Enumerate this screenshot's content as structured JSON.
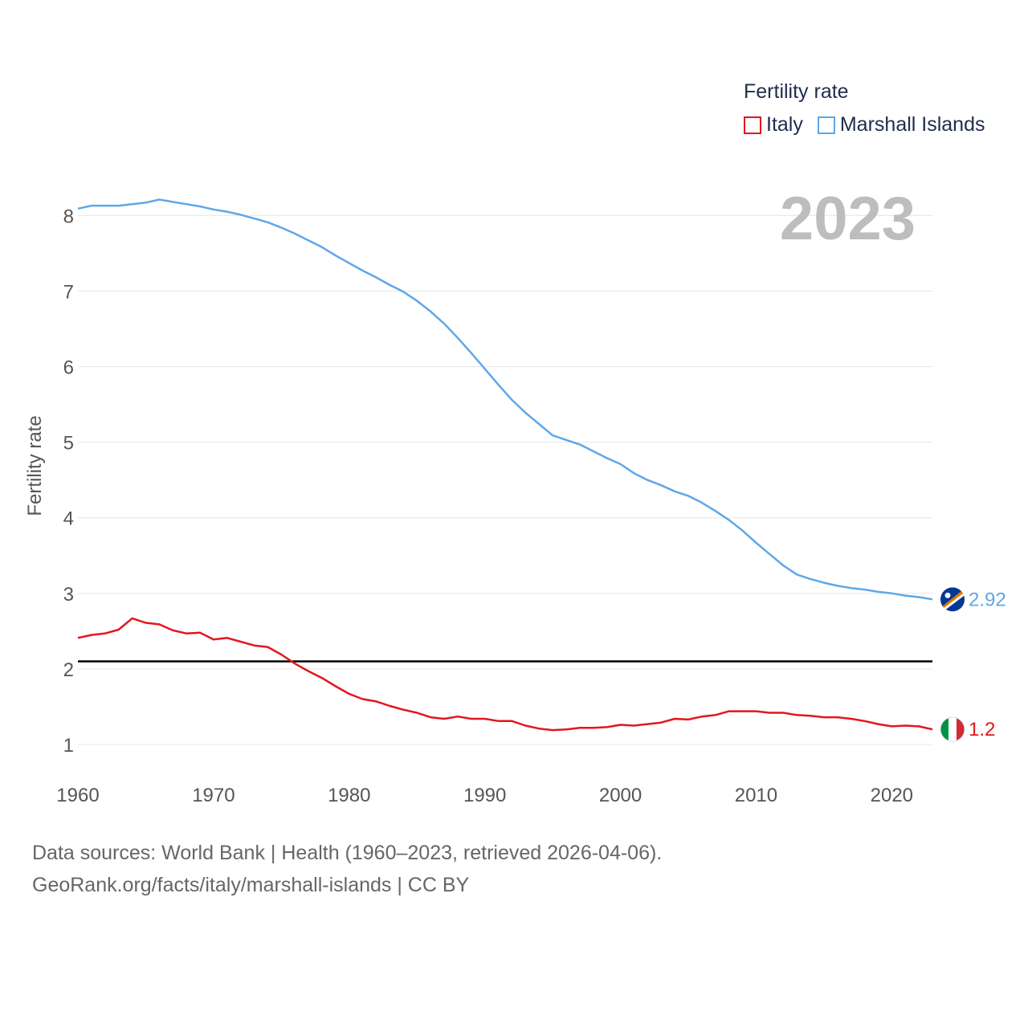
{
  "legend": {
    "title": "Fertility rate",
    "items": [
      {
        "label": "Italy",
        "color": "#e3161d"
      },
      {
        "label": "Marshall Islands",
        "color": "#5fa7e8"
      }
    ]
  },
  "footer": {
    "line1": "Data sources: World Bank | Health (1960–2023, retrieved 2026-04-06).",
    "line2": "GeoRank.org/facts/italy/marshall-islands | CC BY"
  },
  "chart_data": {
    "type": "line",
    "title": "Fertility rate",
    "year_label": "2023",
    "ylabel": "Fertility rate",
    "xlabel": "",
    "xlim": [
      1960,
      2023
    ],
    "ylim": [
      0.6,
      8.3
    ],
    "x_ticks": [
      1960,
      1970,
      1980,
      1990,
      2000,
      2010,
      2020
    ],
    "y_ticks": [
      1,
      2,
      3,
      4,
      5,
      6,
      7,
      8
    ],
    "reference_line": {
      "value": 2.1,
      "color": "#000000"
    },
    "x": [
      1960,
      1961,
      1962,
      1963,
      1964,
      1965,
      1966,
      1967,
      1968,
      1969,
      1970,
      1971,
      1972,
      1973,
      1974,
      1975,
      1976,
      1977,
      1978,
      1979,
      1980,
      1981,
      1982,
      1983,
      1984,
      1985,
      1986,
      1987,
      1988,
      1989,
      1990,
      1991,
      1992,
      1993,
      1994,
      1995,
      1996,
      1997,
      1998,
      1999,
      2000,
      2001,
      2002,
      2003,
      2004,
      2005,
      2006,
      2007,
      2008,
      2009,
      2010,
      2011,
      2012,
      2013,
      2014,
      2015,
      2016,
      2017,
      2018,
      2019,
      2020,
      2021,
      2022,
      2023
    ],
    "series": [
      {
        "name": "Italy",
        "color": "#e3161d",
        "end_label": "1.2",
        "values": [
          2.41,
          2.45,
          2.47,
          2.52,
          2.67,
          2.61,
          2.59,
          2.51,
          2.47,
          2.48,
          2.39,
          2.41,
          2.36,
          2.31,
          2.29,
          2.19,
          2.07,
          1.97,
          1.88,
          1.77,
          1.67,
          1.6,
          1.57,
          1.51,
          1.46,
          1.42,
          1.36,
          1.34,
          1.37,
          1.34,
          1.34,
          1.31,
          1.31,
          1.25,
          1.21,
          1.19,
          1.2,
          1.22,
          1.22,
          1.23,
          1.26,
          1.25,
          1.27,
          1.29,
          1.34,
          1.33,
          1.37,
          1.39,
          1.44,
          1.44,
          1.44,
          1.42,
          1.42,
          1.39,
          1.38,
          1.36,
          1.36,
          1.34,
          1.31,
          1.27,
          1.24,
          1.25,
          1.24,
          1.2
        ]
      },
      {
        "name": "Marshall Islands",
        "color": "#5fa7e8",
        "end_label": "2.92",
        "values": [
          8.09,
          8.13,
          8.13,
          8.13,
          8.15,
          8.17,
          8.21,
          8.18,
          8.15,
          8.12,
          8.08,
          8.05,
          8.01,
          7.96,
          7.91,
          7.84,
          7.76,
          7.67,
          7.58,
          7.47,
          7.37,
          7.27,
          7.18,
          7.08,
          6.99,
          6.87,
          6.73,
          6.57,
          6.38,
          6.18,
          5.97,
          5.76,
          5.56,
          5.39,
          5.24,
          5.09,
          5.03,
          4.97,
          4.88,
          4.79,
          4.71,
          4.59,
          4.5,
          4.43,
          4.35,
          4.29,
          4.2,
          4.09,
          3.97,
          3.83,
          3.67,
          3.52,
          3.37,
          3.25,
          3.19,
          3.14,
          3.1,
          3.07,
          3.05,
          3.02,
          3.0,
          2.97,
          2.95,
          2.92
        ]
      }
    ]
  }
}
